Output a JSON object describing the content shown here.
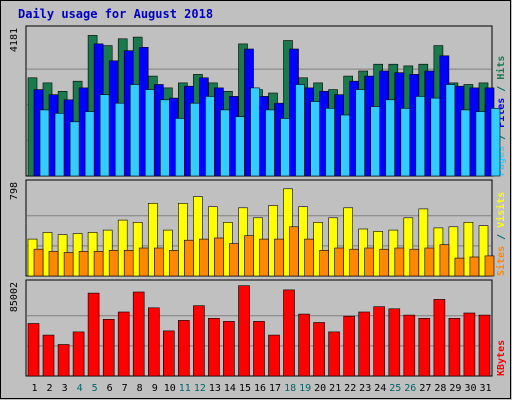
{
  "chart_data": {
    "type": "bar",
    "title": "Daily usage for August 2018",
    "colors": {
      "title": "#0000c0",
      "background": "#c0c0c0",
      "plot_bg": "#c0c0c0",
      "border": "#000000",
      "grid": "#808080",
      "hits": "#1a7a4e",
      "files": "#0000ff",
      "pages": "#33ccff",
      "visits": "#ffff00",
      "sites": "#ff8800",
      "kbytes": "#ff0000",
      "weekend_day_label": "#006666",
      "weekday_day_label": "#000000"
    },
    "categories": [
      "1",
      "2",
      "3",
      "4",
      "5",
      "6",
      "7",
      "8",
      "9",
      "10",
      "11",
      "12",
      "13",
      "14",
      "15",
      "16",
      "17",
      "18",
      "19",
      "20",
      "21",
      "22",
      "23",
      "24",
      "25",
      "26",
      "27",
      "28",
      "29",
      "30",
      "31"
    ],
    "weekend_days": [
      "4",
      "5",
      "11",
      "12",
      "18",
      "19",
      "25",
      "26"
    ],
    "panels": [
      {
        "name": "hits-files-pages",
        "ymax_label": "4181",
        "ymax": 4181,
        "legend": [
          {
            "text": "Pages",
            "color_key": "pages"
          },
          {
            "text": " / ",
            "color_key": "weekend_day_label"
          },
          {
            "text": "Files",
            "color_key": "files"
          },
          {
            "text": " / ",
            "color_key": "weekend_day_label"
          },
          {
            "text": "Hits",
            "color_key": "hits"
          }
        ],
        "series": [
          {
            "name": "Hits",
            "color_key": "hits",
            "values": [
              2900,
              2750,
              2500,
              2800,
              4150,
              3850,
              4050,
              4100,
              2950,
              2600,
              2750,
              3000,
              2750,
              2500,
              3900,
              2550,
              2450,
              4000,
              2900,
              2750,
              2550,
              2950,
              3100,
              3300,
              3300,
              3250,
              3300,
              3850,
              2750,
              2700,
              2750
            ]
          },
          {
            "name": "Files",
            "color_key": "files",
            "values": [
              2550,
              2400,
              2250,
              2600,
              3900,
              3400,
              3700,
              3800,
              2700,
              2300,
              2650,
              2900,
              2600,
              2350,
              3750,
              2350,
              2150,
              3750,
              2600,
              2500,
              2400,
              2800,
              2950,
              3100,
              3050,
              3000,
              3100,
              3550,
              2650,
              2600,
              2600
            ]
          },
          {
            "name": "Pages",
            "color_key": "pages",
            "values": [
              1950,
              1850,
              1600,
              1900,
              2400,
              2150,
              2700,
              2550,
              2250,
              1700,
              2150,
              2350,
              1950,
              1750,
              2600,
              1950,
              1700,
              2700,
              2200,
              2000,
              1800,
              2550,
              2050,
              2250,
              2000,
              2350,
              2300,
              2700,
              1950,
              1900,
              2000
            ]
          }
        ]
      },
      {
        "name": "visits-sites",
        "ymax_label": "798",
        "ymax": 798,
        "legend": [
          {
            "text": "Sites",
            "color_key": "sites"
          },
          {
            "text": " / ",
            "color_key": "weekend_day_label"
          },
          {
            "text": "Visits",
            "color_key": "visits"
          }
        ],
        "series": [
          {
            "name": "Visits",
            "color_key": "visits",
            "values": [
              330,
              390,
              370,
              380,
              390,
              410,
              500,
              480,
              650,
              410,
              650,
              710,
              620,
              480,
              610,
              520,
              630,
              780,
              620,
              480,
              520,
              610,
              420,
              400,
              410,
              520,
              600,
              430,
              440,
              480,
              450
            ]
          },
          {
            "name": "Sites",
            "color_key": "sites",
            "values": [
              240,
              220,
              210,
              220,
              220,
              230,
              230,
              250,
              250,
              230,
              320,
              330,
              340,
              290,
              360,
              330,
              330,
              440,
              330,
              230,
              250,
              240,
              250,
              240,
              250,
              240,
              250,
              280,
              160,
              170,
              180
            ]
          }
        ]
      },
      {
        "name": "kbytes",
        "ymax_label": "85002",
        "ymax": 85002,
        "legend": [
          {
            "text": "KBytes",
            "color_key": "kbytes"
          }
        ],
        "series": [
          {
            "name": "KBytes",
            "color_key": "kbytes",
            "values": [
              50000,
              39000,
              30000,
              42000,
              79000,
              54000,
              61000,
              80000,
              65000,
              43000,
              53000,
              67000,
              55000,
              52000,
              86000,
              52000,
              39000,
              82000,
              59000,
              51000,
              42000,
              57000,
              61000,
              66000,
              64000,
              58000,
              55000,
              73000,
              55000,
              60000,
              58000
            ]
          }
        ]
      }
    ]
  }
}
